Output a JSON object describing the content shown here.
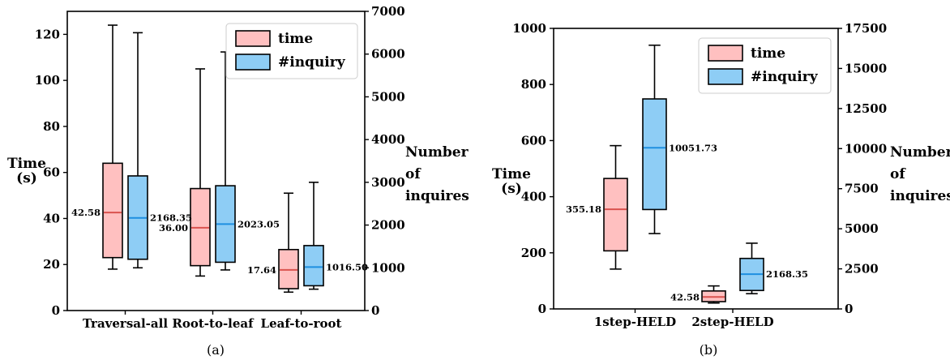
{
  "chart_data": [
    {
      "type": "box",
      "caption": "(a)",
      "categories": [
        "Traversal-all",
        "Root-to-leaf",
        "Leaf-to-root"
      ],
      "ylabel_left": [
        "Time",
        "(s)"
      ],
      "ylabel_right": [
        "Number",
        "of",
        "inquires"
      ],
      "ylim_left": [
        0,
        130
      ],
      "yticks_left": [
        0,
        20,
        40,
        60,
        80,
        100,
        120
      ],
      "ylim_right": [
        0,
        7000
      ],
      "yticks_right": [
        0,
        1000,
        2000,
        3000,
        4000,
        5000,
        6000,
        7000
      ],
      "legend": {
        "placement": "top-right",
        "entries": [
          "time",
          "#inquiry"
        ]
      },
      "series": [
        {
          "name": "time",
          "axis": "left",
          "color": "#ffc0c0",
          "median_color": "#d9534f",
          "boxes": [
            {
              "whislo": 18,
              "q1": 23,
              "med": 42.58,
              "q3": 64,
              "whishi": 124,
              "label": "42.58"
            },
            {
              "whislo": 15,
              "q1": 19.5,
              "med": 36.0,
              "q3": 53,
              "whishi": 105,
              "label": "36.00"
            },
            {
              "whislo": 8,
              "q1": 9.5,
              "med": 17.64,
              "q3": 26.5,
              "whishi": 51,
              "label": "17.64"
            }
          ]
        },
        {
          "name": "#inquiry",
          "axis": "right",
          "color": "#8ecdf5",
          "median_color": "#1e8fe0",
          "boxes": [
            {
              "whislo": 1000,
              "q1": 1200,
              "med": 2168.35,
              "q3": 3150,
              "whishi": 6500,
              "label": "2168.35"
            },
            {
              "whislo": 950,
              "q1": 1130,
              "med": 2023.05,
              "q3": 2920,
              "whishi": 6050,
              "label": "2023.05"
            },
            {
              "whislo": 500,
              "q1": 580,
              "med": 1016.5,
              "q3": 1520,
              "whishi": 3000,
              "label": "1016.50"
            }
          ]
        }
      ]
    },
    {
      "type": "box",
      "caption": "(b)",
      "categories": [
        "1step-HELD",
        "2step-HELD"
      ],
      "ylabel_left": [
        "Time",
        "(s)"
      ],
      "ylabel_right": [
        "Number",
        "of",
        "inquires"
      ],
      "ylim_left": [
        0,
        1000
      ],
      "yticks_left": [
        0,
        200,
        400,
        600,
        800,
        1000
      ],
      "ylim_right": [
        0,
        17500
      ],
      "yticks_right": [
        0,
        2500,
        5000,
        7500,
        10000,
        12500,
        15000,
        17500
      ],
      "legend": {
        "placement": "top-right",
        "entries": [
          "time",
          "#inquiry"
        ]
      },
      "series": [
        {
          "name": "time",
          "axis": "left",
          "color": "#ffc0c0",
          "median_color": "#d9534f",
          "boxes": [
            {
              "whislo": 142,
              "q1": 207,
              "med": 355.18,
              "q3": 465,
              "whishi": 582,
              "label": "355.18"
            },
            {
              "whislo": 21,
              "q1": 26,
              "med": 42.58,
              "q3": 64,
              "whishi": 82,
              "label": "42.58"
            }
          ]
        },
        {
          "name": "#inquiry",
          "axis": "right",
          "color": "#8ecdf5",
          "median_color": "#1e8fe0",
          "boxes": [
            {
              "whislo": 4700,
              "q1": 6200,
              "med": 10051.73,
              "q3": 13100,
              "whishi": 16450,
              "label": "10051.73"
            },
            {
              "whislo": 950,
              "q1": 1150,
              "med": 2168.35,
              "q3": 3150,
              "whishi": 4100,
              "label": "2168.35"
            }
          ]
        }
      ]
    }
  ]
}
